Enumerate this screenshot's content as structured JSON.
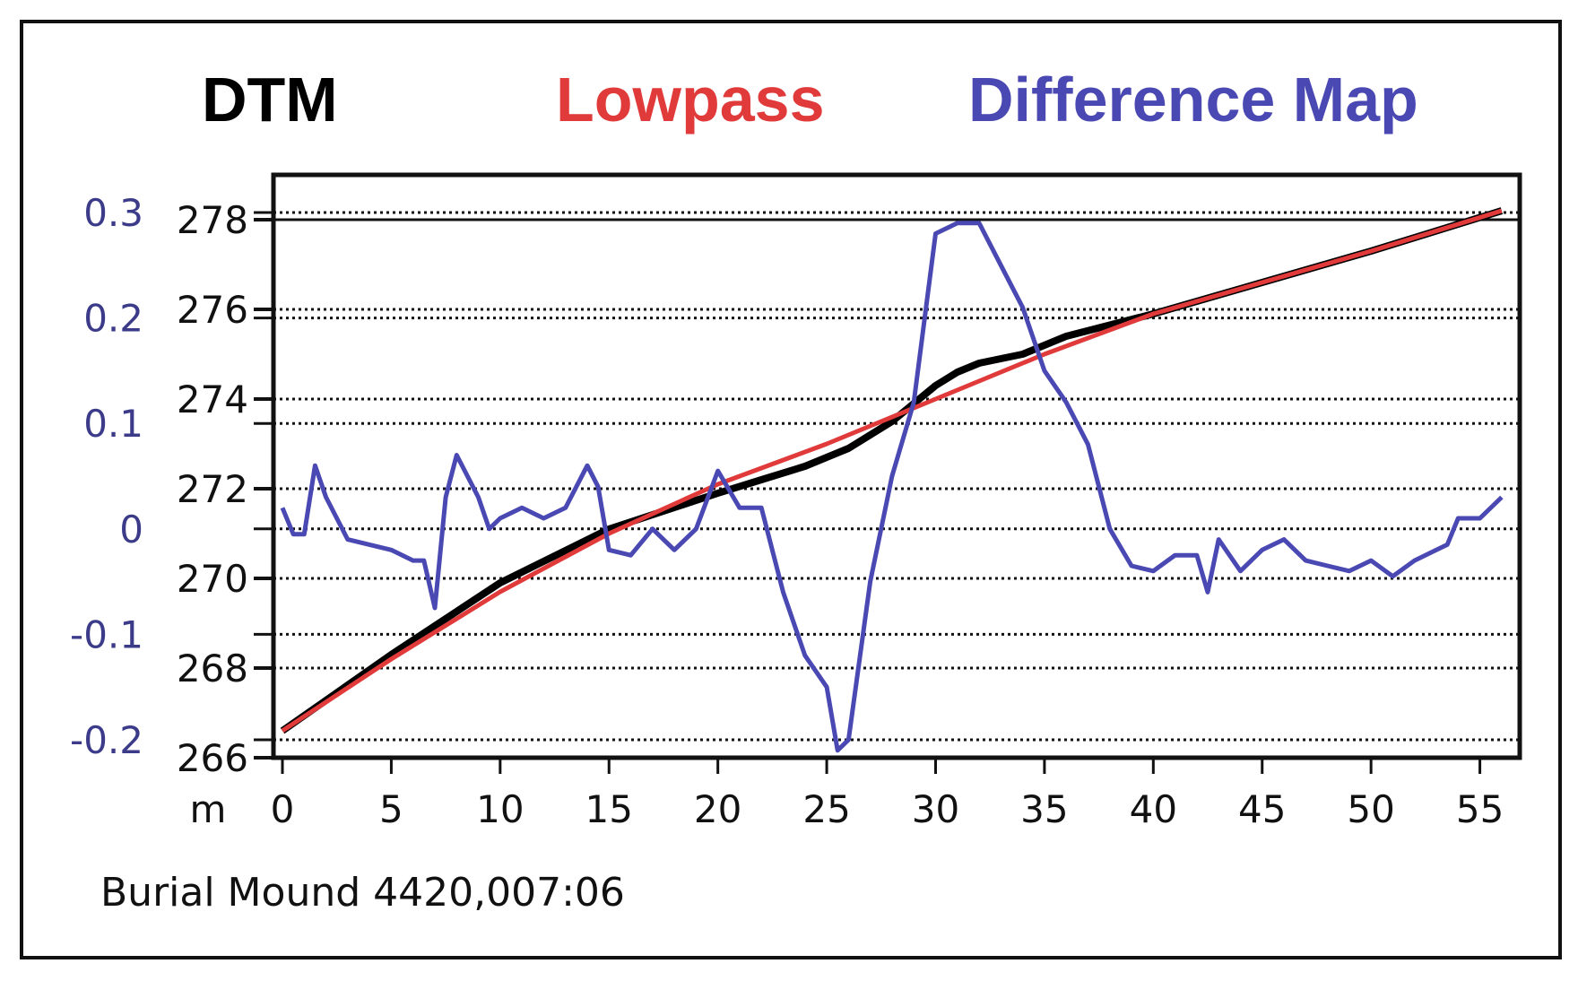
{
  "legend": {
    "dtm": "DTM",
    "lowpass": "Lowpass",
    "difference": "Difference Map"
  },
  "caption": "Burial Mound 4420,007:06",
  "colors": {
    "dtm": "#000000",
    "lowpass": "#e03a3a",
    "difference": "#4a48b2",
    "secondary_axis_text": "#3b3b8a"
  },
  "chart_data": {
    "type": "line",
    "xlabel": "m",
    "xlim": [
      0,
      56.5
    ],
    "x_ticks": [
      0,
      5,
      10,
      15,
      20,
      25,
      30,
      35,
      40,
      45,
      50,
      55
    ],
    "y_left": {
      "lim": [
        266,
        279
      ],
      "ticks": [
        266,
        268,
        270,
        272,
        274,
        276,
        278
      ]
    },
    "y_right": {
      "lim": [
        -0.2,
        0.3
      ],
      "ticks": [
        -0.2,
        -0.1,
        0,
        0.1,
        0.2,
        0.3
      ]
    },
    "grid": "dotted horizontal",
    "legend_position": "top",
    "series": [
      {
        "name": "DTM",
        "axis": "left",
        "color": "#000000",
        "x": [
          0,
          5,
          10,
          15,
          20,
          22,
          24,
          26,
          28,
          29,
          30,
          31,
          32,
          33,
          34,
          36,
          40,
          45,
          50,
          56
        ],
        "y": [
          266.6,
          268.3,
          269.9,
          271.1,
          271.9,
          272.2,
          272.5,
          272.9,
          273.5,
          273.9,
          274.3,
          274.6,
          274.8,
          274.9,
          275.0,
          275.4,
          275.9,
          276.6,
          277.3,
          278.2
        ]
      },
      {
        "name": "Lowpass",
        "axis": "left",
        "color": "#e03a3a",
        "x": [
          0,
          5,
          10,
          15,
          20,
          25,
          30,
          35,
          40,
          45,
          50,
          56
        ],
        "y": [
          266.6,
          268.2,
          269.7,
          271.0,
          272.1,
          273.0,
          274.0,
          275.0,
          275.9,
          276.6,
          277.3,
          278.2
        ]
      },
      {
        "name": "Difference Map",
        "axis": "right",
        "color": "#4a48b2",
        "x": [
          0,
          0.5,
          1,
          1.5,
          2,
          3,
          4,
          5,
          6,
          6.5,
          7,
          7.5,
          8,
          9,
          9.5,
          10,
          11,
          12,
          13,
          14,
          14.5,
          15,
          16,
          17,
          18,
          19,
          20,
          21,
          22,
          23,
          24,
          25,
          25.5,
          26,
          27,
          28,
          29,
          30,
          31,
          32,
          33,
          34,
          35,
          36,
          37,
          38,
          39,
          40,
          41,
          42,
          42.5,
          43,
          44,
          45,
          46,
          47,
          48,
          49,
          50,
          51,
          52,
          53,
          53.5,
          54,
          55,
          56
        ],
        "y": [
          0.02,
          -0.005,
          -0.005,
          0.06,
          0.03,
          -0.01,
          -0.015,
          -0.02,
          -0.03,
          -0.03,
          -0.075,
          0.03,
          0.07,
          0.03,
          0.0,
          0.01,
          0.02,
          0.01,
          0.02,
          0.06,
          0.04,
          -0.02,
          -0.025,
          0.0,
          -0.02,
          0.0,
          0.055,
          0.02,
          0.02,
          -0.06,
          -0.12,
          -0.15,
          -0.21,
          -0.2,
          -0.05,
          0.05,
          0.12,
          0.28,
          0.29,
          0.29,
          0.25,
          0.21,
          0.15,
          0.12,
          0.08,
          0.0,
          -0.035,
          -0.04,
          -0.025,
          -0.025,
          -0.06,
          -0.01,
          -0.04,
          -0.02,
          -0.01,
          -0.03,
          -0.035,
          -0.04,
          -0.03,
          -0.045,
          -0.03,
          -0.02,
          -0.015,
          0.01,
          0.01,
          0.03
        ]
      }
    ]
  }
}
